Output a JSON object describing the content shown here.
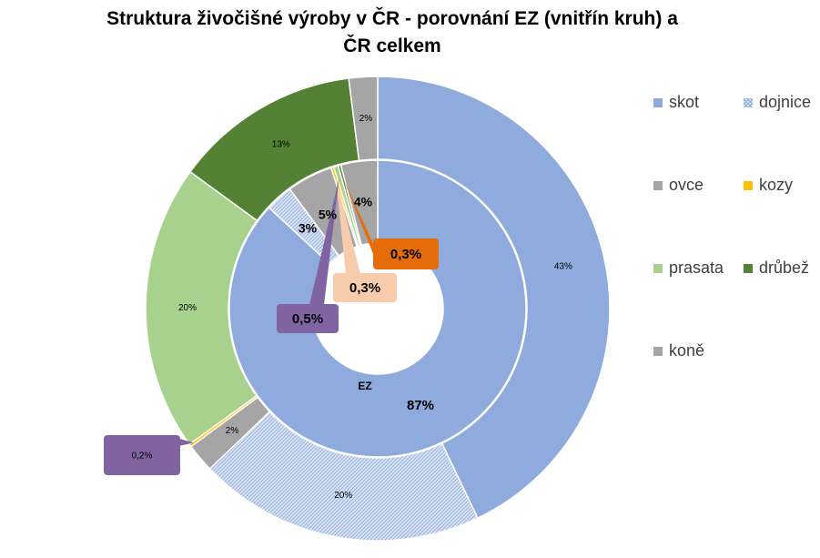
{
  "title_lines": [
    "Struktura živočišné výroby v ČR - porovnání EZ (vnitřín kruh)  a",
    "ČR celkem"
  ],
  "chart_data": {
    "type": "donut",
    "title": "Struktura živočišné výroby v ČR - porovnání EZ (vnitřín kruh)  a ČR celkem",
    "categories": [
      "skot",
      "dojnice",
      "ovce",
      "kozy",
      "prasata",
      "drůbež",
      "koně"
    ],
    "colors": {
      "skot": "#8faadc",
      "dojnice": "#c9d6ee",
      "ovce": "#a5a5a5",
      "kozy": "#ffc000",
      "prasata": "#a9d18e",
      "drůbež": "#548235",
      "koně": "#a5a5a5"
    },
    "series": [
      {
        "name": "",
        "ring": "outer",
        "values": [
          43,
          20,
          2,
          0.2,
          20,
          13,
          2
        ],
        "labels": [
          "43%",
          "20%",
          "2%",
          "0,2%",
          "20%",
          "13%",
          "2%"
        ]
      },
      {
        "name": "EZ",
        "ring": "inner",
        "values": [
          87,
          3,
          5,
          0.3,
          0.5,
          0.3,
          4
        ],
        "labels": [
          "87%",
          "3%",
          "5%",
          "0,3%",
          "0,5%",
          "0,3%",
          "4%"
        ]
      }
    ],
    "legend": [
      "skot",
      "dojnice",
      "ovce",
      "kozy",
      "prasata",
      "drůbež",
      "koně"
    ],
    "legend_position": "right"
  }
}
